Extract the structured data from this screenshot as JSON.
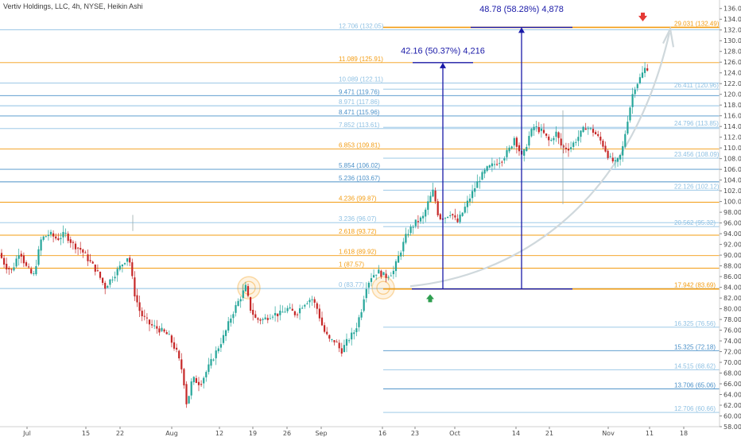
{
  "title": "Vertiv Holdings, LLC, 4h, NYSE, Heikin Ashi",
  "colors": {
    "up": "#26a69a",
    "down": "#c62828",
    "orange": "#f39c12",
    "blue": "#4a90c8",
    "lightblue": "#8fc1e3",
    "measure": "#1a1aa8",
    "arrow_up": "#2e9e4f",
    "arrow_down": "#e53935",
    "arc": "#cfd8dc"
  },
  "chart_data": {
    "type": "candlestick",
    "title": "Vertiv Holdings, LLC, 4h, NYSE, Heikin Ashi",
    "ylim": [
      58,
      137
    ],
    "y_ticks": [
      "136.00",
      "134.00",
      "132.00",
      "130.00",
      "128.00",
      "126.00",
      "124.00",
      "122.00",
      "120.00",
      "118.00",
      "116.00",
      "114.00",
      "112.00",
      "110.00",
      "108.00",
      "106.00",
      "104.00",
      "102.00",
      "100.00",
      "98.00",
      "96.00",
      "94.00",
      "92.00",
      "90.00",
      "88.00",
      "86.00",
      "84.00",
      "82.00",
      "80.00",
      "78.00",
      "76.00",
      "74.00",
      "72.00",
      "70.00",
      "68.00",
      "66.00",
      "64.00",
      "62.00",
      "60.00",
      "58.00"
    ],
    "x_ticks": [
      "Jul",
      "15",
      "22",
      "Aug",
      "12",
      "19",
      "26",
      "Sep",
      "16",
      "23",
      "Oct",
      "14",
      "21",
      "Nov",
      "11",
      "18"
    ],
    "fib_levels": [
      {
        "label": "12.706 (132.05)",
        "price": 132.05,
        "color": "lightblue",
        "side": "left"
      },
      {
        "label": "11.089 (125.91)",
        "price": 125.91,
        "color": "orange",
        "side": "left"
      },
      {
        "label": "10.089 (122.11)",
        "price": 122.11,
        "color": "lightblue",
        "side": "left"
      },
      {
        "label": "9.471 (119.76)",
        "price": 119.76,
        "color": "blue",
        "side": "left"
      },
      {
        "label": "8.971 (117.86)",
        "price": 117.86,
        "color": "lightblue",
        "side": "left"
      },
      {
        "label": "8.471 (115.96)",
        "price": 115.96,
        "color": "blue",
        "side": "left"
      },
      {
        "label": "7.852 (113.61)",
        "price": 113.61,
        "color": "lightblue",
        "side": "left"
      },
      {
        "label": "6.853 (109.81)",
        "price": 109.81,
        "color": "orange",
        "side": "left"
      },
      {
        "label": "5.854 (106.02)",
        "price": 106.02,
        "color": "blue",
        "side": "left"
      },
      {
        "label": "5.236 (103.67)",
        "price": 103.67,
        "color": "blue",
        "side": "left"
      },
      {
        "label": "4.236 (99.87)",
        "price": 99.87,
        "color": "orange",
        "side": "left"
      },
      {
        "label": "3.236 (96.07)",
        "price": 96.07,
        "color": "lightblue",
        "side": "left"
      },
      {
        "label": "2.618 (93.72)",
        "price": 93.72,
        "color": "orange",
        "side": "left"
      },
      {
        "label": "1.618 (89.92)",
        "price": 89.92,
        "color": "orange",
        "side": "left"
      },
      {
        "label": "1 (87.57)",
        "price": 87.57,
        "color": "orange",
        "side": "left"
      },
      {
        "label": "0 (83.77)",
        "price": 83.77,
        "color": "lightblue",
        "side": "left"
      },
      {
        "label": "29.031 (132.49)",
        "price": 132.49,
        "color": "orange",
        "side": "right"
      },
      {
        "label": "26.411 (120.96)",
        "price": 120.96,
        "color": "lightblue",
        "side": "right"
      },
      {
        "label": "24.796 (113.85)",
        "price": 113.85,
        "color": "lightblue",
        "side": "right"
      },
      {
        "label": "23.456 (108.09)",
        "price": 108.09,
        "color": "lightblue",
        "side": "right"
      },
      {
        "label": "22.126 (102.12)",
        "price": 102.12,
        "color": "lightblue",
        "side": "right"
      },
      {
        "label": "20.562 (95.32)",
        "price": 95.32,
        "color": "lightblue",
        "side": "right"
      },
      {
        "label": "17.942 (83.69)",
        "price": 83.69,
        "color": "orange",
        "side": "right"
      },
      {
        "label": "16.325 (76.56)",
        "price": 76.56,
        "color": "lightblue",
        "side": "right"
      },
      {
        "label": "15.325 (72.18)",
        "price": 72.18,
        "color": "blue",
        "side": "right"
      },
      {
        "label": "14.515 (68.62)",
        "price": 68.62,
        "color": "lightblue",
        "side": "right"
      },
      {
        "label": "13.706 (65.06)",
        "price": 65.06,
        "color": "blue",
        "side": "right"
      },
      {
        "label": "12.706 (60.66)",
        "price": 60.66,
        "color": "lightblue",
        "side": "right"
      }
    ],
    "measurements": [
      {
        "label": "42.16 (50.37%) 4,216",
        "from": 83.69,
        "to": 125.91
      },
      {
        "label": "48.78 (58.28%) 4,878",
        "from": 83.69,
        "to": 132.49
      }
    ],
    "price_waypoints": [
      [
        0,
        91
      ],
      [
        10,
        88
      ],
      [
        18,
        87
      ],
      [
        28,
        91
      ],
      [
        35,
        88
      ],
      [
        45,
        86
      ],
      [
        55,
        93
      ],
      [
        65,
        94
      ],
      [
        75,
        93
      ],
      [
        85,
        94
      ],
      [
        95,
        92
      ],
      [
        105,
        91
      ],
      [
        115,
        89
      ],
      [
        125,
        87
      ],
      [
        135,
        84
      ],
      [
        145,
        86
      ],
      [
        155,
        88
      ],
      [
        165,
        90
      ],
      [
        172,
        83
      ],
      [
        180,
        79
      ],
      [
        192,
        77
      ],
      [
        205,
        76
      ],
      [
        215,
        75
      ],
      [
        225,
        72
      ],
      [
        233,
        68
      ],
      [
        238,
        62
      ],
      [
        245,
        67
      ],
      [
        255,
        66
      ],
      [
        265,
        69
      ],
      [
        275,
        72
      ],
      [
        285,
        75
      ],
      [
        295,
        79
      ],
      [
        305,
        82
      ],
      [
        312,
        84
      ],
      [
        318,
        80
      ],
      [
        325,
        78
      ],
      [
        335,
        78
      ],
      [
        345,
        79
      ],
      [
        355,
        79
      ],
      [
        365,
        80
      ],
      [
        375,
        79
      ],
      [
        385,
        81
      ],
      [
        395,
        82
      ],
      [
        402,
        80
      ],
      [
        410,
        76
      ],
      [
        418,
        74
      ],
      [
        425,
        74
      ],
      [
        432,
        72
      ],
      [
        440,
        74
      ],
      [
        450,
        76
      ],
      [
        458,
        80
      ],
      [
        463,
        84
      ],
      [
        470,
        86
      ],
      [
        478,
        87
      ],
      [
        488,
        86
      ],
      [
        498,
        87
      ],
      [
        505,
        90
      ],
      [
        515,
        94
      ],
      [
        525,
        96
      ],
      [
        535,
        97
      ],
      [
        542,
        100
      ],
      [
        548,
        102
      ],
      [
        555,
        97
      ],
      [
        562,
        97
      ],
      [
        570,
        98
      ],
      [
        578,
        96
      ],
      [
        585,
        98
      ],
      [
        595,
        101
      ],
      [
        605,
        104
      ],
      [
        615,
        106
      ],
      [
        625,
        107
      ],
      [
        635,
        108
      ],
      [
        645,
        110
      ],
      [
        650,
        112
      ],
      [
        660,
        108
      ],
      [
        668,
        112
      ],
      [
        675,
        114
      ],
      [
        685,
        113
      ],
      [
        695,
        111
      ],
      [
        702,
        113
      ],
      [
        710,
        110
      ],
      [
        720,
        110
      ],
      [
        730,
        112
      ],
      [
        740,
        114
      ],
      [
        750,
        113
      ],
      [
        760,
        111
      ],
      [
        770,
        108
      ],
      [
        778,
        107
      ],
      [
        785,
        109
      ],
      [
        792,
        115
      ],
      [
        800,
        121
      ],
      [
        808,
        123
      ],
      [
        815,
        125
      ]
    ]
  }
}
